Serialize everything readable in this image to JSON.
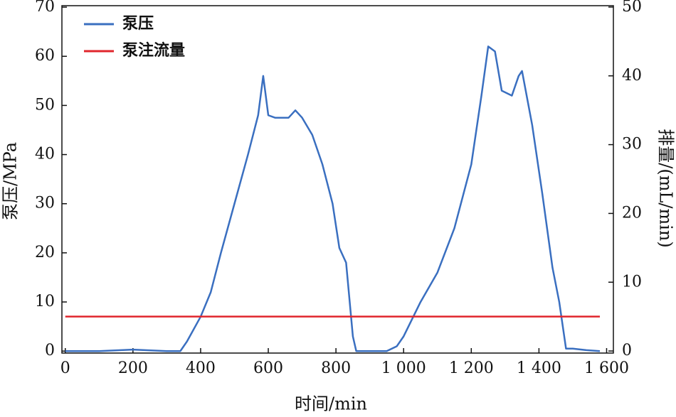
{
  "chart_data": {
    "type": "line",
    "x_label": "时间/min",
    "y_label": "泵压/MPa",
    "y2_label": "排量/(mL/min)",
    "x": [
      0,
      100,
      200,
      300,
      340,
      360,
      400,
      430,
      460,
      500,
      540,
      570,
      585,
      600,
      620,
      660,
      680,
      700,
      730,
      760,
      790,
      810,
      830,
      850,
      860,
      900,
      950,
      980,
      1000,
      1050,
      1100,
      1150,
      1200,
      1230,
      1250,
      1270,
      1290,
      1320,
      1340,
      1350,
      1380,
      1410,
      1440,
      1460,
      1480,
      1500,
      1540,
      1580
    ],
    "series": [
      {
        "name": "泵压",
        "color": "#3a6fc0",
        "values": [
          0,
          0,
          0.3,
          0,
          0,
          2,
          7,
          12,
          20,
          30,
          40,
          48,
          56,
          48,
          47.5,
          47.5,
          49,
          47.5,
          44,
          38,
          30,
          21,
          18,
          3,
          0,
          0,
          0,
          1,
          3,
          10,
          16,
          25,
          38,
          52,
          62,
          61,
          53,
          52,
          56,
          57,
          46,
          32,
          17,
          10,
          0.5,
          0.5,
          0.2,
          0
        ]
      },
      {
        "name": "泵注流量",
        "color": "#e0262c",
        "axis": "y2",
        "values": [
          5,
          5,
          5,
          5,
          5,
          5,
          5,
          5,
          5,
          5,
          5,
          5,
          5,
          5,
          5,
          5,
          5,
          5,
          5,
          5,
          5,
          5,
          5,
          5,
          5,
          5,
          5,
          5,
          5,
          5,
          5,
          5,
          5,
          5,
          5,
          5,
          5,
          5,
          5,
          5,
          5,
          5,
          5,
          5,
          5,
          5,
          5,
          5
        ]
      }
    ],
    "xlim": [
      -10,
      1620
    ],
    "xticks": [
      0,
      200,
      400,
      600,
      800,
      {
        "value": 1000,
        "label": "1 000"
      },
      {
        "value": 1200,
        "label": "1 200"
      },
      {
        "value": 1400,
        "label": "1 400"
      },
      {
        "value": 1600,
        "label": "1 600"
      }
    ],
    "ylim": [
      -0.4,
      70.3
    ],
    "yticks": [
      0,
      10,
      20,
      30,
      40,
      50,
      60,
      70
    ],
    "y2lim": [
      -0.3,
      50.2
    ],
    "y2ticks": [
      0,
      10,
      20,
      30,
      40,
      50
    ],
    "legend": "upper-left"
  }
}
